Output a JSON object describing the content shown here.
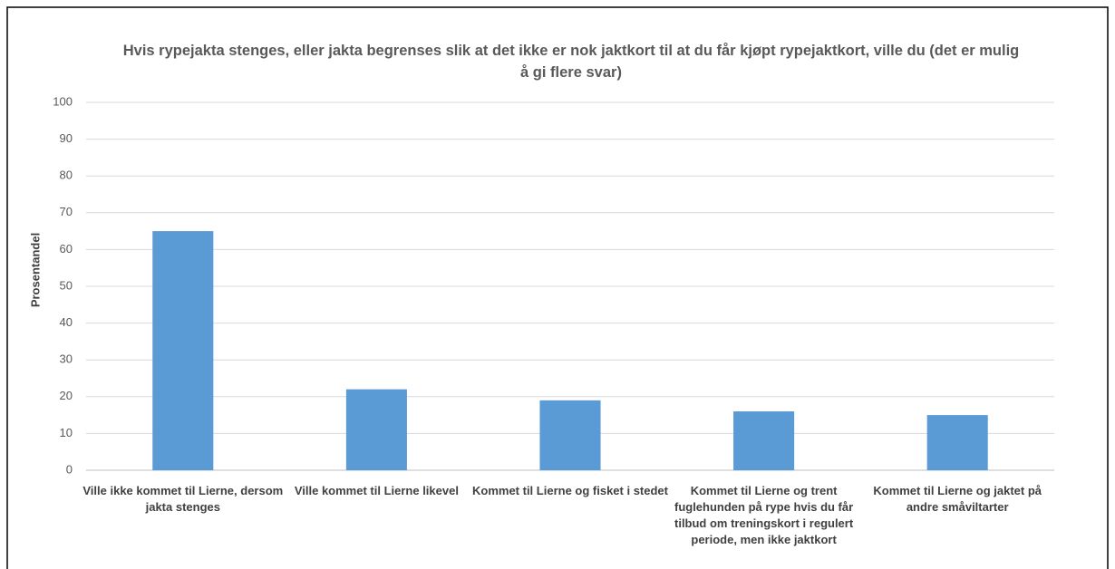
{
  "chart_data": {
    "type": "bar",
    "title": "Hvis rypejakta stenges, eller jakta begrenses slik at det ikke er nok jaktkort til at du får kjøpt rypejaktkort, ville du (det er mulig å gi flere svar)",
    "y_label": "Prosentandel",
    "categories": [
      "Ville ikke kommet til Lierne, dersom jakta stenges",
      "Ville kommet til Lierne likevel",
      "Kommet til Lierne og fisket i stedet",
      "Kommet til Lierne og trent fuglehunden på rype hvis du får tilbud om treningskort i regulert periode, men ikke jaktkort",
      "Kommet til Lierne og jaktet på andre småviltarter"
    ],
    "values": [
      65,
      22,
      19,
      16,
      15
    ],
    "color": "#5b9bd5",
    "ylim": [
      0,
      100
    ],
    "yticks": [
      0,
      10,
      20,
      30,
      40,
      50,
      60,
      70,
      80,
      90,
      100
    ],
    "grid": true
  }
}
